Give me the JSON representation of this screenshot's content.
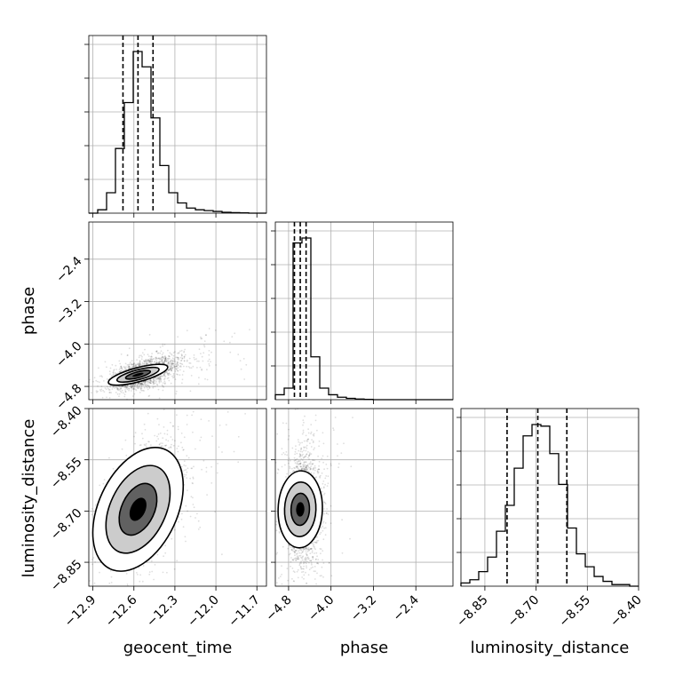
{
  "chart_data": {
    "type": "corner",
    "parameters": [
      "geocent_time",
      "phase",
      "luminosity_distance"
    ],
    "axis_labels": {
      "x": [
        "geocent_time",
        "phase",
        "luminosity_distance"
      ],
      "y": [
        "",
        "phase",
        "luminosity_distance"
      ]
    },
    "ranges": {
      "geocent_time": [
        -12.93,
        -11.63
      ],
      "phase": [
        -5.05,
        -1.7
      ],
      "luminosity_distance": [
        -8.92,
        -8.4
      ]
    },
    "ticks": {
      "geocent_time": [
        -12.9,
        -12.6,
        -12.3,
        -12.0,
        -11.7
      ],
      "phase": [
        -4.8,
        -4.0,
        -3.2,
        -2.4
      ],
      "luminosity_distance": [
        -8.85,
        -8.7,
        -8.55,
        -8.4
      ]
    },
    "tick_labels": {
      "geocent_time": [
        "−12.9",
        "−12.6",
        "−12.3",
        "−12.0",
        "−11.7"
      ],
      "phase": [
        "−4.8",
        "−4.0",
        "−3.2",
        "−2.4"
      ],
      "luminosity_distance": [
        "−8.85",
        "−8.70",
        "−8.55",
        "−8.40"
      ]
    },
    "quantiles": {
      "geocent_time": [
        -12.68,
        -12.57,
        -12.46
      ],
      "phase": [
        -4.69,
        -4.58,
        -4.47
      ],
      "luminosity_distance": [
        -8.785,
        -8.695,
        -8.61
      ]
    },
    "histograms": {
      "geocent_time": [
        0.0,
        0.02,
        0.12,
        0.38,
        0.65,
        0.95,
        0.86,
        0.56,
        0.28,
        0.12,
        0.06,
        0.03,
        0.02,
        0.015,
        0.01,
        0.005,
        0.003,
        0.002,
        0.0,
        0.0
      ],
      "phase": [
        0.03,
        0.07,
        0.95,
        0.98,
        0.26,
        0.07,
        0.03,
        0.015,
        0.008,
        0.004,
        0.002,
        0.0,
        0.0,
        0.0,
        0.0,
        0.0,
        0.0,
        0.0,
        0.0,
        0.0
      ],
      "luminosity_distance": [
        0.02,
        0.04,
        0.09,
        0.18,
        0.34,
        0.5,
        0.73,
        0.93,
        1.0,
        0.99,
        0.82,
        0.63,
        0.36,
        0.2,
        0.12,
        0.06,
        0.03,
        0.01,
        0.01,
        0.0
      ]
    },
    "grid": true
  }
}
